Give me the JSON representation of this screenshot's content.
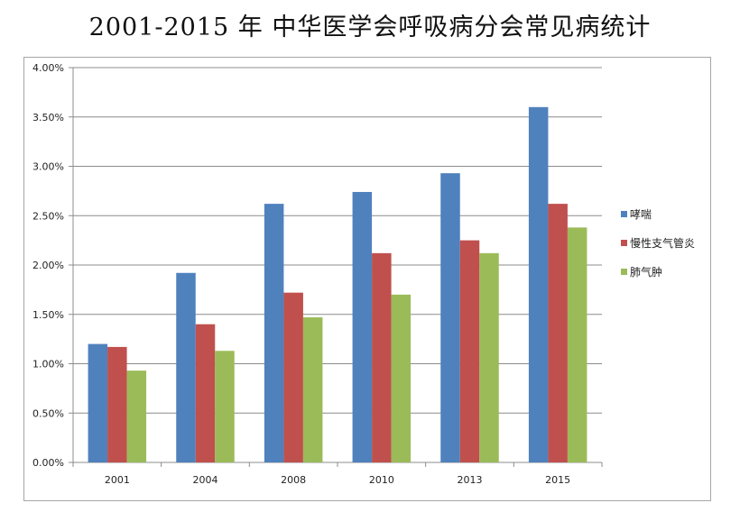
{
  "chart_data": {
    "type": "bar",
    "title": "2001-2015 年 中华医学会呼吸病分会常见病统计",
    "xlabel": "",
    "ylabel": "",
    "categories": [
      "2001",
      "2004",
      "2008",
      "2010",
      "2013",
      "2015"
    ],
    "series": [
      {
        "name": "哮喘",
        "color": "#4f81bd",
        "values": [
          1.2,
          1.92,
          2.62,
          2.74,
          2.93,
          3.6
        ]
      },
      {
        "name": "慢性支气管炎",
        "color": "#c0504d",
        "values": [
          1.17,
          1.4,
          1.72,
          2.12,
          2.25,
          2.62
        ]
      },
      {
        "name": "肺气肿",
        "color": "#9bbb59",
        "values": [
          0.93,
          1.13,
          1.47,
          1.7,
          2.12,
          2.38
        ]
      }
    ],
    "ylim": [
      0,
      4
    ],
    "yticks": [
      "0.00%",
      "0.50%",
      "1.00%",
      "1.50%",
      "2.00%",
      "2.50%",
      "3.00%",
      "3.50%",
      "4.00%"
    ],
    "ytick_values": [
      0,
      0.5,
      1.0,
      1.5,
      2.0,
      2.5,
      3.0,
      3.5,
      4.0
    ],
    "grid": true,
    "legend_position": "right"
  }
}
